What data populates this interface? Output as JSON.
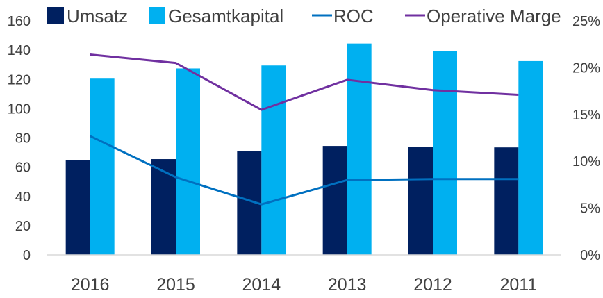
{
  "chart_data": {
    "type": "bar",
    "categories": [
      "2016",
      "2015",
      "2014",
      "2013",
      "2012",
      "2011"
    ],
    "series": [
      {
        "name": "Umsatz",
        "kind": "bar",
        "axis": "left",
        "color": "#002060",
        "values": [
          65,
          65.5,
          71,
          74.5,
          74,
          73.5
        ]
      },
      {
        "name": "Gesamtkapital",
        "kind": "bar",
        "axis": "left",
        "color": "#00B0F0",
        "values": [
          120.5,
          127.5,
          129.5,
          144.5,
          139.5,
          132.5
        ]
      },
      {
        "name": "ROC",
        "kind": "line",
        "axis": "right",
        "color": "#0070C0",
        "values": [
          12.7,
          8.3,
          5.4,
          8.0,
          8.1,
          8.1
        ]
      },
      {
        "name": "Operative Marge",
        "kind": "line",
        "axis": "right",
        "color": "#7030A0",
        "values": [
          21.4,
          20.5,
          15.5,
          18.7,
          17.6,
          17.1
        ]
      }
    ],
    "y_left": {
      "ticks": [
        "0",
        "20",
        "40",
        "60",
        "80",
        "100",
        "120",
        "140",
        "160"
      ],
      "ylim": [
        0,
        160
      ]
    },
    "y_right": {
      "ticks": [
        "0%",
        "5%",
        "10%",
        "15%",
        "20%",
        "25%"
      ],
      "ylim": [
        0,
        25
      ]
    },
    "grid": false,
    "legend_position": "top"
  }
}
